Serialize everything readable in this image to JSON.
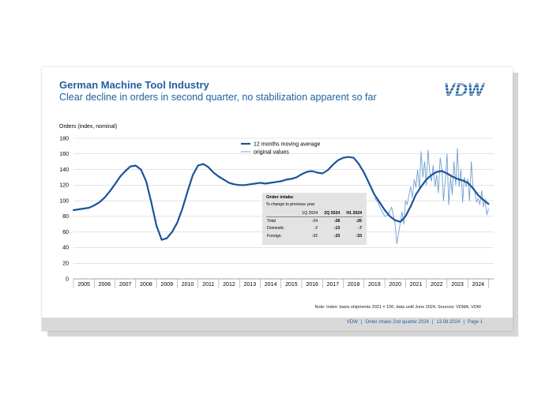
{
  "header": {
    "title": "German Machine Tool Industry",
    "subtitle": "Clear decline in orders in second quarter, no stabilization apparent so far",
    "logo_text": "VDW"
  },
  "table": {
    "title": "Order intake",
    "subtitle": "% change to previous year",
    "columns": [
      "",
      "1Q 2024",
      "2Q 2024",
      "H1 2024"
    ],
    "rows": [
      {
        "label": "Total",
        "q1": "-24",
        "q2": "-28",
        "h1": "-26"
      },
      {
        "label": "Domestic",
        "q1": "-2",
        "q2": "-13",
        "h1": "-7"
      },
      {
        "label": "Foreign",
        "q1": "-32",
        "q2": "-33",
        "h1": "-33"
      }
    ]
  },
  "note": "Note: Index: basis shipments 2021 = 100, data until June 2024, Sources: VDMA, VDW",
  "footer": {
    "org": "VDW",
    "topic": "Order intake 2nd quarter 2024",
    "date": "13.08.2024",
    "page": "Page 1"
  },
  "colors": {
    "primary": "#1f5f9f",
    "moving_avg": "#1a5499",
    "original": "#6f9fd0",
    "grid": "#c8c8c8",
    "footer_band": "#d9d9d9"
  },
  "chart_data": {
    "type": "line",
    "ylabel": "Orders (index, nominal)",
    "ylim": [
      0,
      180
    ],
    "yticks": [
      "0",
      "20",
      "40",
      "60",
      "80",
      "100",
      "120",
      "140",
      "160",
      "180"
    ],
    "xlim": [
      2004.5,
      2024.75
    ],
    "xticks": [
      "2005",
      "2006",
      "2007",
      "2008",
      "2009",
      "2010",
      "2011",
      "2012",
      "2013",
      "2014",
      "2015",
      "2016",
      "2017",
      "2018",
      "2019",
      "2020",
      "2021",
      "2022",
      "2023",
      "2024"
    ],
    "grid": true,
    "legend_position": "top",
    "series": [
      {
        "name": "12 months moving average",
        "x": [
          2004.5,
          2004.75,
          2005.0,
          2005.25,
          2005.5,
          2005.75,
          2006.0,
          2006.25,
          2006.5,
          2006.75,
          2007.0,
          2007.25,
          2007.5,
          2007.75,
          2008.0,
          2008.25,
          2008.5,
          2008.75,
          2009.0,
          2009.25,
          2009.5,
          2009.75,
          2010.0,
          2010.25,
          2010.5,
          2010.75,
          2011.0,
          2011.25,
          2011.5,
          2011.75,
          2012.0,
          2012.25,
          2012.5,
          2012.75,
          2013.0,
          2013.25,
          2013.5,
          2013.75,
          2014.0,
          2014.25,
          2014.5,
          2014.75,
          2015.0,
          2015.25,
          2015.5,
          2015.75,
          2016.0,
          2016.25,
          2016.5,
          2016.75,
          2017.0,
          2017.25,
          2017.5,
          2017.75,
          2018.0,
          2018.25,
          2018.5,
          2018.75,
          2019.0,
          2019.25,
          2019.5,
          2019.75,
          2020.0,
          2020.25,
          2020.5,
          2020.75,
          2021.0,
          2021.25,
          2021.5,
          2021.75,
          2022.0,
          2022.25,
          2022.5,
          2022.75,
          2023.0,
          2023.25,
          2023.5,
          2023.75,
          2024.0,
          2024.25,
          2024.5
        ],
        "values": [
          88,
          89,
          90,
          91,
          94,
          98,
          104,
          112,
          121,
          131,
          138,
          144,
          145,
          140,
          125,
          98,
          68,
          50,
          52,
          60,
          72,
          90,
          112,
          133,
          145,
          147,
          143,
          136,
          131,
          127,
          123,
          121,
          120,
          120,
          121,
          122,
          123,
          122,
          123,
          124,
          125,
          127,
          128,
          130,
          134,
          137,
          138,
          136,
          135,
          139,
          146,
          152,
          155,
          156,
          155,
          147,
          136,
          122,
          108,
          98,
          88,
          80,
          75,
          73,
          80,
          93,
          108,
          118,
          127,
          133,
          137,
          138,
          135,
          131,
          128,
          126,
          123,
          116,
          107,
          101,
          96
        ]
      },
      {
        "name": "original values",
        "x": [
          2019.0,
          2019.17,
          2019.33,
          2019.5,
          2019.67,
          2019.83,
          2020.0,
          2020.08,
          2020.17,
          2020.25,
          2020.33,
          2020.42,
          2020.5,
          2020.58,
          2020.67,
          2020.75,
          2020.83,
          2020.92,
          2021.0,
          2021.08,
          2021.17,
          2021.25,
          2021.33,
          2021.42,
          2021.5,
          2021.58,
          2021.67,
          2021.75,
          2021.83,
          2021.92,
          2022.0,
          2022.08,
          2022.17,
          2022.25,
          2022.33,
          2022.42,
          2022.5,
          2022.58,
          2022.67,
          2022.75,
          2022.83,
          2022.92,
          2023.0,
          2023.08,
          2023.17,
          2023.25,
          2023.33,
          2023.42,
          2023.5,
          2023.58,
          2023.67,
          2023.75,
          2023.83,
          2023.92,
          2024.0,
          2024.08,
          2024.17,
          2024.25,
          2024.33,
          2024.42,
          2024.5
        ],
        "values": [
          104,
          98,
          88,
          80,
          82,
          92,
          70,
          45,
          60,
          72,
          86,
          70,
          100,
          95,
          108,
          118,
          104,
          127,
          117,
          140,
          115,
          163,
          130,
          150,
          120,
          165,
          135,
          125,
          145,
          118,
          133,
          110,
          155,
          140,
          100,
          128,
          160,
          95,
          130,
          108,
          150,
          120,
          167,
          118,
          140,
          98,
          130,
          118,
          128,
          100,
          150,
          118,
          112,
          98,
          103,
          95,
          113,
          92,
          102,
          82,
          90
        ]
      }
    ]
  }
}
